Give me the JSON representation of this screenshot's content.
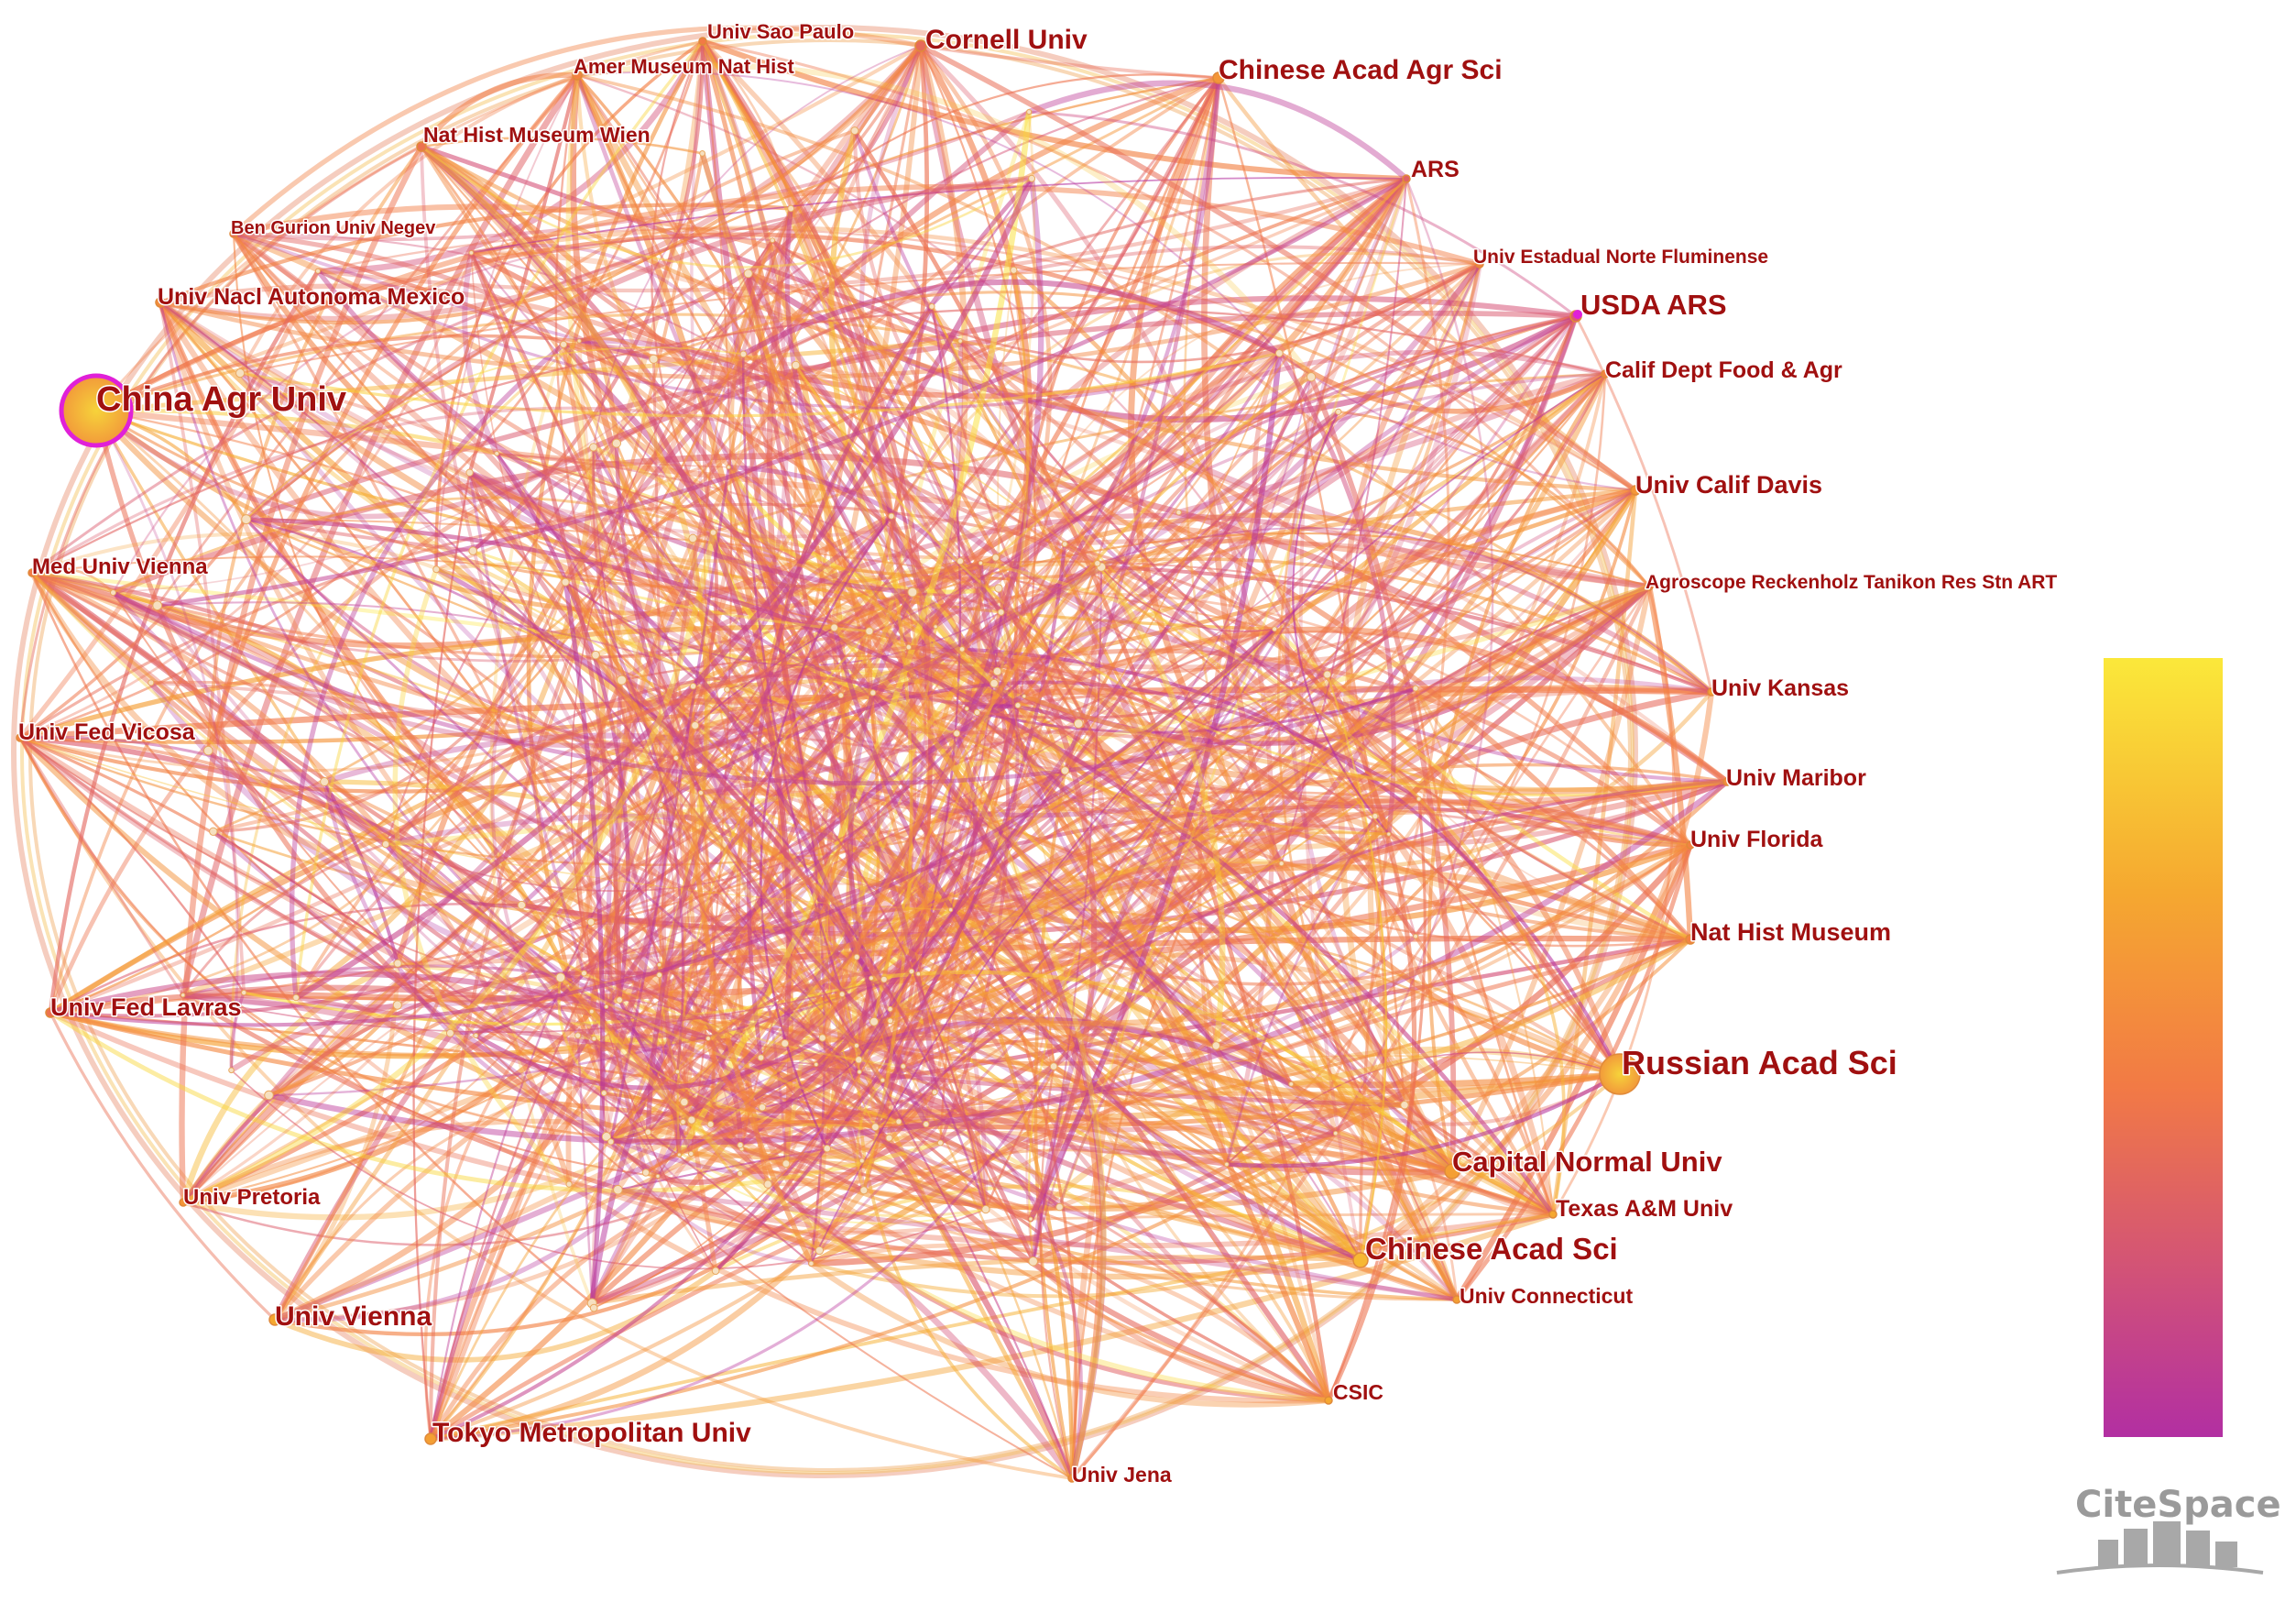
{
  "colors": {
    "label": "#a01010",
    "scale_top": "#fbe83a",
    "scale_mid": "#f2803a",
    "scale_bottom": "#b22fa2",
    "highlight_ring": "#e020d8"
  },
  "network": {
    "institutions": [
      {
        "id": "univ-sao-paulo",
        "label": "Univ Sao Paulo",
        "color_value": 0.55
      },
      {
        "id": "amer-museum",
        "label": "Amer Museum Nat Hist",
        "color_value": 0.6
      },
      {
        "id": "cornell",
        "label": "Cornell Univ",
        "color_value": 0.45
      },
      {
        "id": "chinese-acad-agr-sci",
        "label": "Chinese Acad Agr Sci",
        "color_value": 0.7
      },
      {
        "id": "nat-hist-museum-wien",
        "label": "Nat Hist Museum Wien",
        "color_value": 0.5
      },
      {
        "id": "ars",
        "label": "ARS",
        "color_value": 0.4
      },
      {
        "id": "ben-gurion",
        "label": "Ben Gurion Univ Negev",
        "color_value": 0.45
      },
      {
        "id": "univ-estadual-norte-fluminense",
        "label": "Univ Estadual Norte Fluminense",
        "color_value": 0.6
      },
      {
        "id": "univ-nacl-autonoma-mexico",
        "label": "Univ Nacl Autonoma Mexico",
        "color_value": 0.65
      },
      {
        "id": "usda-ars",
        "label": "USDA ARS",
        "color_value": 0.35
      },
      {
        "id": "calif-dept-food-agr",
        "label": "Calif Dept Food & Agr",
        "color_value": 0.6
      },
      {
        "id": "china-agr-univ",
        "label": "China Agr Univ",
        "color_value": 0.9
      },
      {
        "id": "univ-calif-davis",
        "label": "Univ Calif Davis",
        "color_value": 0.7
      },
      {
        "id": "med-univ-vienna",
        "label": "Med Univ Vienna",
        "color_value": 0.55
      },
      {
        "id": "agroscope",
        "label": "Agroscope Reckenholz Tanikon Res Stn ART",
        "color_value": 0.5
      },
      {
        "id": "univ-kansas",
        "label": "Univ Kansas",
        "color_value": 0.75
      },
      {
        "id": "univ-fed-vicosa",
        "label": "Univ Fed Vicosa",
        "color_value": 0.6
      },
      {
        "id": "univ-maribor",
        "label": "Univ Maribor",
        "color_value": 0.65
      },
      {
        "id": "univ-florida",
        "label": "Univ Florida",
        "color_value": 0.6
      },
      {
        "id": "nat-hist-museum",
        "label": "Nat Hist Museum",
        "color_value": 0.6
      },
      {
        "id": "univ-fed-lavras",
        "label": "Univ Fed Lavras",
        "color_value": 0.5
      },
      {
        "id": "russian-acad-sci",
        "label": "Russian Acad Sci",
        "color_value": 0.85
      },
      {
        "id": "capital-normal-univ",
        "label": "Capital Normal Univ",
        "color_value": 0.75
      },
      {
        "id": "univ-pretoria",
        "label": "Univ Pretoria",
        "color_value": 0.7
      },
      {
        "id": "texas-am",
        "label": "Texas A&M Univ",
        "color_value": 0.8
      },
      {
        "id": "chinese-acad-sci",
        "label": "Chinese Acad Sci",
        "color_value": 0.85
      },
      {
        "id": "univ-vienna",
        "label": "Univ Vienna",
        "color_value": 0.8
      },
      {
        "id": "univ-connecticut",
        "label": "Univ Connecticut",
        "color_value": 0.75
      },
      {
        "id": "csic",
        "label": "CSIC",
        "color_value": 0.8
      },
      {
        "id": "tokyo-metropolitan",
        "label": "Tokyo Metropolitan Univ",
        "color_value": 0.75
      },
      {
        "id": "univ-jena",
        "label": "Univ Jena",
        "color_value": 0.65
      }
    ]
  },
  "legend": {
    "gradient_colors": [
      "#fbe83a",
      "#f5b030",
      "#f2803a",
      "#e0605a",
      "#c84280",
      "#b22fa2"
    ]
  },
  "watermark": {
    "text": "CiteSpace"
  }
}
